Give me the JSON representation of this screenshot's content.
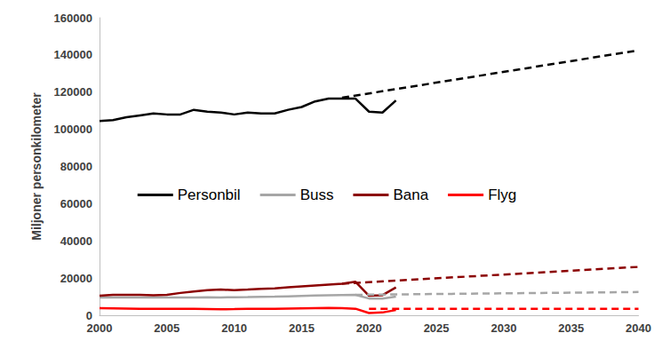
{
  "chart_data": {
    "type": "line",
    "ylabel": "Miljoner personkilometer",
    "xlim": [
      2000,
      2040
    ],
    "xticks": [
      2000,
      2005,
      2010,
      2015,
      2020,
      2025,
      2030,
      2035,
      2040
    ],
    "ylim": [
      0,
      160000
    ],
    "yticks": [
      0,
      20000,
      40000,
      60000,
      80000,
      100000,
      120000,
      140000,
      160000
    ],
    "grid": false,
    "legend": "center",
    "series": [
      {
        "name": "Personbil",
        "color": "#000000",
        "line_style": "solid",
        "x": [
          2000,
          2001,
          2002,
          2003,
          2004,
          2005,
          2006,
          2007,
          2008,
          2009,
          2010,
          2011,
          2012,
          2013,
          2014,
          2015,
          2016,
          2017,
          2018,
          2019,
          2020,
          2021,
          2022
        ],
        "values": [
          104500,
          105000,
          106500,
          107500,
          108500,
          108000,
          108000,
          110500,
          109500,
          109000,
          108000,
          109000,
          108500,
          108500,
          110500,
          112000,
          115000,
          116500,
          116500,
          116500,
          109500,
          109000,
          115500
        ]
      },
      {
        "name": "Buss",
        "color": "#a6a6a6",
        "line_style": "solid",
        "x": [
          2000,
          2001,
          2002,
          2003,
          2004,
          2005,
          2006,
          2007,
          2008,
          2009,
          2010,
          2011,
          2012,
          2013,
          2014,
          2015,
          2016,
          2017,
          2018,
          2019,
          2020,
          2021,
          2022
        ],
        "values": [
          9500,
          9500,
          9500,
          9500,
          9500,
          9500,
          9500,
          9600,
          9700,
          9600,
          9700,
          9800,
          9900,
          10000,
          10200,
          10400,
          10600,
          10800,
          10900,
          11000,
          9000,
          9000,
          10000
        ]
      },
      {
        "name": "Bana",
        "color": "#8b0000",
        "line_style": "solid",
        "x": [
          2000,
          2001,
          2002,
          2003,
          2004,
          2005,
          2006,
          2007,
          2008,
          2009,
          2010,
          2011,
          2012,
          2013,
          2014,
          2015,
          2016,
          2017,
          2018,
          2019,
          2020,
          2021,
          2022
        ],
        "values": [
          10500,
          11000,
          11000,
          11000,
          10800,
          11000,
          12000,
          12800,
          13500,
          13800,
          13500,
          13800,
          14200,
          14500,
          15000,
          15500,
          16000,
          16500,
          17000,
          18000,
          10500,
          10800,
          15000
        ]
      },
      {
        "name": "Flyg",
        "color": "#ff0000",
        "line_style": "solid",
        "x": [
          2000,
          2001,
          2002,
          2003,
          2004,
          2005,
          2006,
          2007,
          2008,
          2009,
          2010,
          2011,
          2012,
          2013,
          2014,
          2015,
          2016,
          2017,
          2018,
          2019,
          2020,
          2021,
          2022
        ],
        "values": [
          3800,
          3700,
          3600,
          3500,
          3500,
          3500,
          3500,
          3500,
          3400,
          3200,
          3300,
          3500,
          3500,
          3500,
          3600,
          3700,
          3800,
          3900,
          3800,
          3500,
          1200,
          1500,
          2800
        ]
      },
      {
        "name": "Personbil",
        "color": "#000000",
        "line_style": "dashed",
        "x": [
          2018,
          2040
        ],
        "values": [
          117000,
          142500
        ]
      },
      {
        "name": "Buss",
        "color": "#a6a6a6",
        "line_style": "dashed",
        "x": [
          2019,
          2040
        ],
        "values": [
          11000,
          12500
        ]
      },
      {
        "name": "Bana",
        "color": "#8b0000",
        "line_style": "dashed",
        "x": [
          2018,
          2040
        ],
        "values": [
          17000,
          26000
        ]
      },
      {
        "name": "Flyg",
        "color": "#ff0000",
        "line_style": "dashed",
        "x": [
          2020,
          2040
        ],
        "values": [
          3500,
          3500
        ]
      }
    ]
  }
}
